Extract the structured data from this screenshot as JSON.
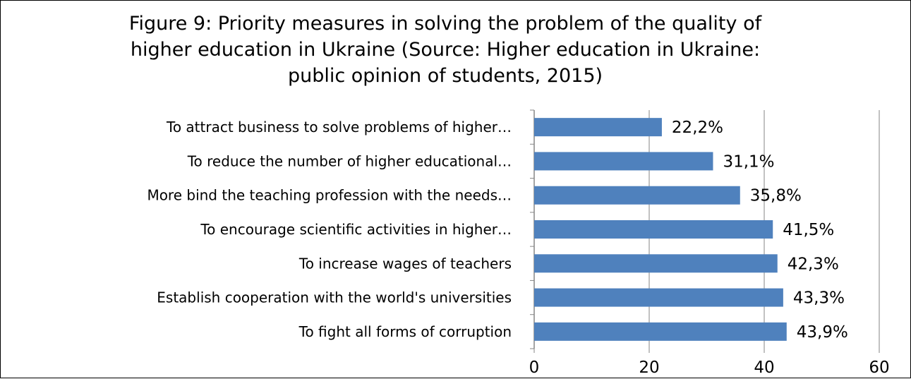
{
  "chart_data": {
    "type": "bar",
    "orientation": "horizontal",
    "title": "Figure 9: Priority measures in solving the problem of the quality  of\nhigher education in Ukraine (Source: Higher education in Ukraine:\npublic opinion of students, 2015)",
    "categories": [
      "To attract business to solve problems of higher…",
      "To reduce the number of higher educational…",
      "More bind the teaching profession with the needs…",
      "To encourage scientific activities in higher…",
      "To increase wages of teachers",
      "Establish cooperation with the world's universities",
      "To fight all forms of corruption"
    ],
    "values": [
      22.2,
      31.1,
      35.8,
      41.5,
      42.3,
      43.3,
      43.9
    ],
    "data_labels": [
      "22,2%",
      "31,1%",
      "35,8%",
      "41,5%",
      "42,3%",
      "43,3%",
      "43,9%"
    ],
    "xlim": [
      0,
      60
    ],
    "xticks": [
      "0",
      "20",
      "40",
      "60"
    ],
    "grid": "vertical",
    "legend": "none",
    "bar_color": "#4f81bd",
    "grid_color": "#868686"
  }
}
